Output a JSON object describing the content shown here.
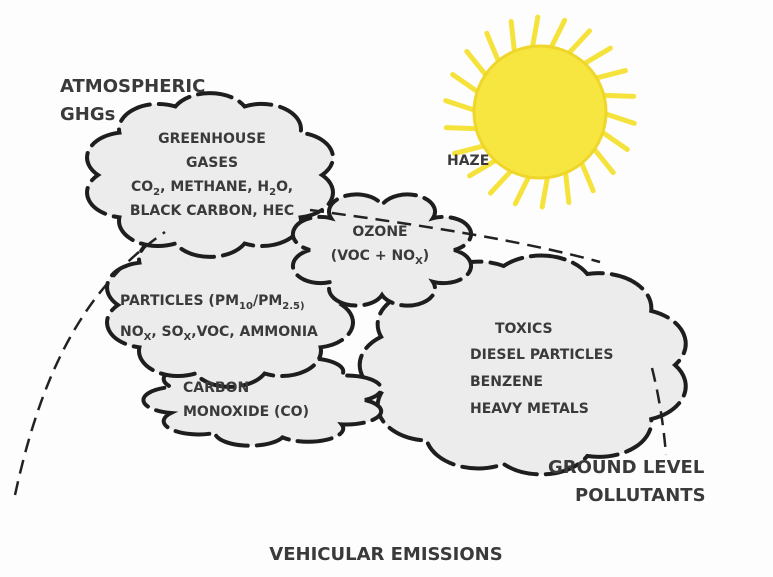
{
  "atmospheric_ghgs": [
    "ATMOSPHERIC",
    "GHGs"
  ],
  "haze": "HAZE",
  "clouds": [
    {
      "name": "greenhouse",
      "lines": [
        [
          "GREENHOUSE"
        ],
        [
          "GASES"
        ],
        [
          "CO",
          {
            "sub": "2"
          },
          ", METHANE, H",
          {
            "sub": "2"
          },
          "O,"
        ],
        [
          "BLACK CARBON, HEC"
        ]
      ]
    },
    {
      "name": "ozone",
      "lines": [
        [
          "OZONE"
        ],
        [
          "(VOC + NO",
          {
            "sub": "X"
          },
          ")"
        ]
      ]
    },
    {
      "name": "particles",
      "lines": [
        [
          "PARTICLES (PM",
          {
            "sub": "10"
          },
          "/PM",
          {
            "sub": "2.5)"
          }
        ],
        [
          "NO",
          {
            "sub": "X"
          },
          ", SO",
          {
            "sub": "X"
          },
          ",VOC, AMMONIA"
        ]
      ]
    },
    {
      "name": "carbon",
      "lines": [
        [
          "CARBON"
        ],
        [
          "MONOXIDE (CO)"
        ]
      ]
    },
    {
      "name": "toxics",
      "lines": [
        [
          "TOXICS"
        ],
        [
          "DIESEL PARTICLES"
        ],
        [
          "BENZENE"
        ],
        [
          "HEAVY METALS"
        ]
      ]
    }
  ],
  "ground_level": [
    "GROUND LEVEL",
    "POLLUTANTS"
  ],
  "footer": "VEHICULAR EMISSIONS"
}
